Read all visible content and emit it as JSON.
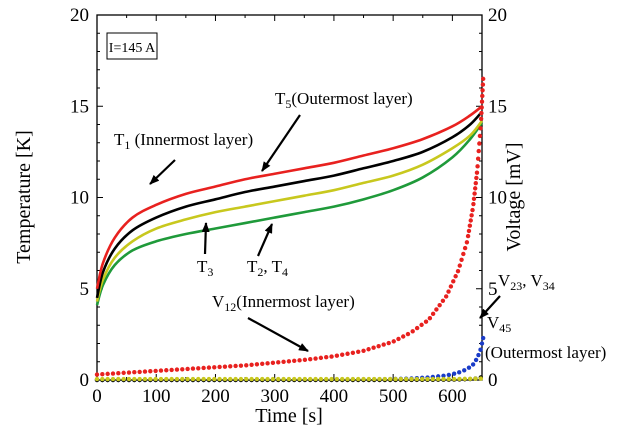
{
  "chart_data": {
    "type": "line",
    "title": "",
    "xlabel": "Time [s]",
    "ylabel_left": "Temperature [K]",
    "ylabel_right": "Voltage [mV]",
    "xlim": [
      0,
      650
    ],
    "ylim_left": [
      0,
      20
    ],
    "ylim_right": [
      0,
      20
    ],
    "xticks": [
      "0",
      "100",
      "200",
      "300",
      "400",
      "500",
      "600"
    ],
    "yticks_left": [
      "0",
      "5",
      "10",
      "15",
      "20"
    ],
    "yticks_right": [
      "0",
      "5",
      "10",
      "15",
      "20"
    ],
    "grid": false,
    "legend": "none",
    "condition_label": "I=145 A",
    "temperature_series": [
      {
        "id": "T1",
        "axis": "left",
        "color": "#e8211f",
        "x": [
          0,
          10,
          30,
          60,
          100,
          150,
          200,
          250,
          300,
          350,
          400,
          450,
          500,
          550,
          600,
          630,
          650
        ],
        "y": [
          5.0,
          6.4,
          7.8,
          8.9,
          9.6,
          10.2,
          10.6,
          11.0,
          11.3,
          11.6,
          11.9,
          12.3,
          12.7,
          13.2,
          13.9,
          14.5,
          15.0
        ]
      },
      {
        "id": "T5",
        "axis": "left",
        "color": "#000000",
        "x": [
          0,
          10,
          30,
          60,
          100,
          150,
          200,
          250,
          300,
          350,
          400,
          450,
          500,
          550,
          600,
          630,
          650
        ],
        "y": [
          4.5,
          5.9,
          7.2,
          8.2,
          8.9,
          9.5,
          9.9,
          10.3,
          10.6,
          10.9,
          11.2,
          11.6,
          12.0,
          12.5,
          13.3,
          14.0,
          14.7
        ]
      },
      {
        "id": "T3",
        "axis": "left",
        "color": "#c8c81e",
        "x": [
          0,
          10,
          30,
          60,
          100,
          150,
          200,
          250,
          300,
          350,
          400,
          450,
          500,
          550,
          600,
          630,
          650
        ],
        "y": [
          4.3,
          5.5,
          6.7,
          7.6,
          8.3,
          8.8,
          9.2,
          9.5,
          9.8,
          10.1,
          10.4,
          10.8,
          11.2,
          11.8,
          12.7,
          13.4,
          14.2
        ]
      },
      {
        "id": "T2, T4",
        "axis": "left",
        "color": "#1f9a3a",
        "x": [
          0,
          10,
          30,
          60,
          100,
          150,
          200,
          250,
          300,
          350,
          400,
          450,
          500,
          550,
          600,
          630,
          650
        ],
        "y": [
          4.1,
          5.2,
          6.3,
          7.1,
          7.6,
          8.0,
          8.3,
          8.6,
          8.9,
          9.2,
          9.5,
          9.9,
          10.4,
          11.1,
          12.2,
          13.2,
          14.1
        ]
      }
    ],
    "voltage_series": [
      {
        "id": "V12",
        "axis": "right",
        "color": "#e8211f",
        "x": [
          0,
          50,
          100,
          150,
          200,
          250,
          300,
          350,
          400,
          450,
          500,
          530,
          560,
          590,
          610,
          625,
          635,
          642,
          648,
          652
        ],
        "y": [
          0.3,
          0.4,
          0.5,
          0.6,
          0.7,
          0.8,
          0.95,
          1.1,
          1.3,
          1.6,
          2.1,
          2.6,
          3.3,
          4.6,
          6.0,
          7.6,
          9.5,
          11.5,
          14.0,
          16.5
        ]
      },
      {
        "id": "V23, V34",
        "axis": "right",
        "color": "#1a3cc8",
        "x": [
          0,
          100,
          200,
          300,
          400,
          450,
          500,
          530,
          560,
          590,
          610,
          625,
          635,
          642,
          648,
          652
        ],
        "y": [
          0.0,
          0.0,
          0.0,
          0.01,
          0.02,
          0.03,
          0.05,
          0.08,
          0.14,
          0.25,
          0.4,
          0.6,
          0.85,
          1.2,
          1.7,
          2.3
        ]
      },
      {
        "id": "V45",
        "axis": "right",
        "color": "#000000",
        "x": [
          0,
          100,
          200,
          300,
          400,
          500,
          560,
          600,
          630,
          645,
          652
        ],
        "y": [
          0.0,
          0.0,
          0.0,
          0.0,
          0.0,
          0.0,
          0.01,
          0.02,
          0.05,
          0.1,
          0.2
        ]
      },
      {
        "id": "baseline",
        "axis": "right",
        "color": "#c8c81e",
        "x": [
          0,
          100,
          200,
          300,
          400,
          500,
          600,
          652
        ],
        "y": [
          0.05,
          0.05,
          0.05,
          0.05,
          0.05,
          0.05,
          0.05,
          0.08
        ]
      }
    ],
    "annotations": [
      {
        "main": "T",
        "sub": "1",
        "rest": " (Innermost layer)",
        "target_x": 110,
        "target_y": 9.7
      },
      {
        "main": "T",
        "sub": "5",
        "rest": "(Outermost layer)",
        "target_x": 360,
        "target_y": 10.95
      },
      {
        "main": "T",
        "sub": "3",
        "rest": "",
        "target_x": 230,
        "target_y": 9.3
      },
      {
        "main": "T",
        "sub": "2",
        "rest": ", T",
        "sub2": "4",
        "target_x": 340,
        "target_y": 8.95
      },
      {
        "main": "V",
        "sub": "12",
        "rest": "(Innermost layer)",
        "target_x": 395,
        "target_y": 1.3
      },
      {
        "main": "V",
        "sub": "23",
        "rest": ", V",
        "sub2": "34",
        "target_x": 645,
        "target_y": 1.8
      },
      {
        "main": "V",
        "sub": "45",
        "rest": "",
        "line2": "(Outermost layer)"
      }
    ]
  }
}
